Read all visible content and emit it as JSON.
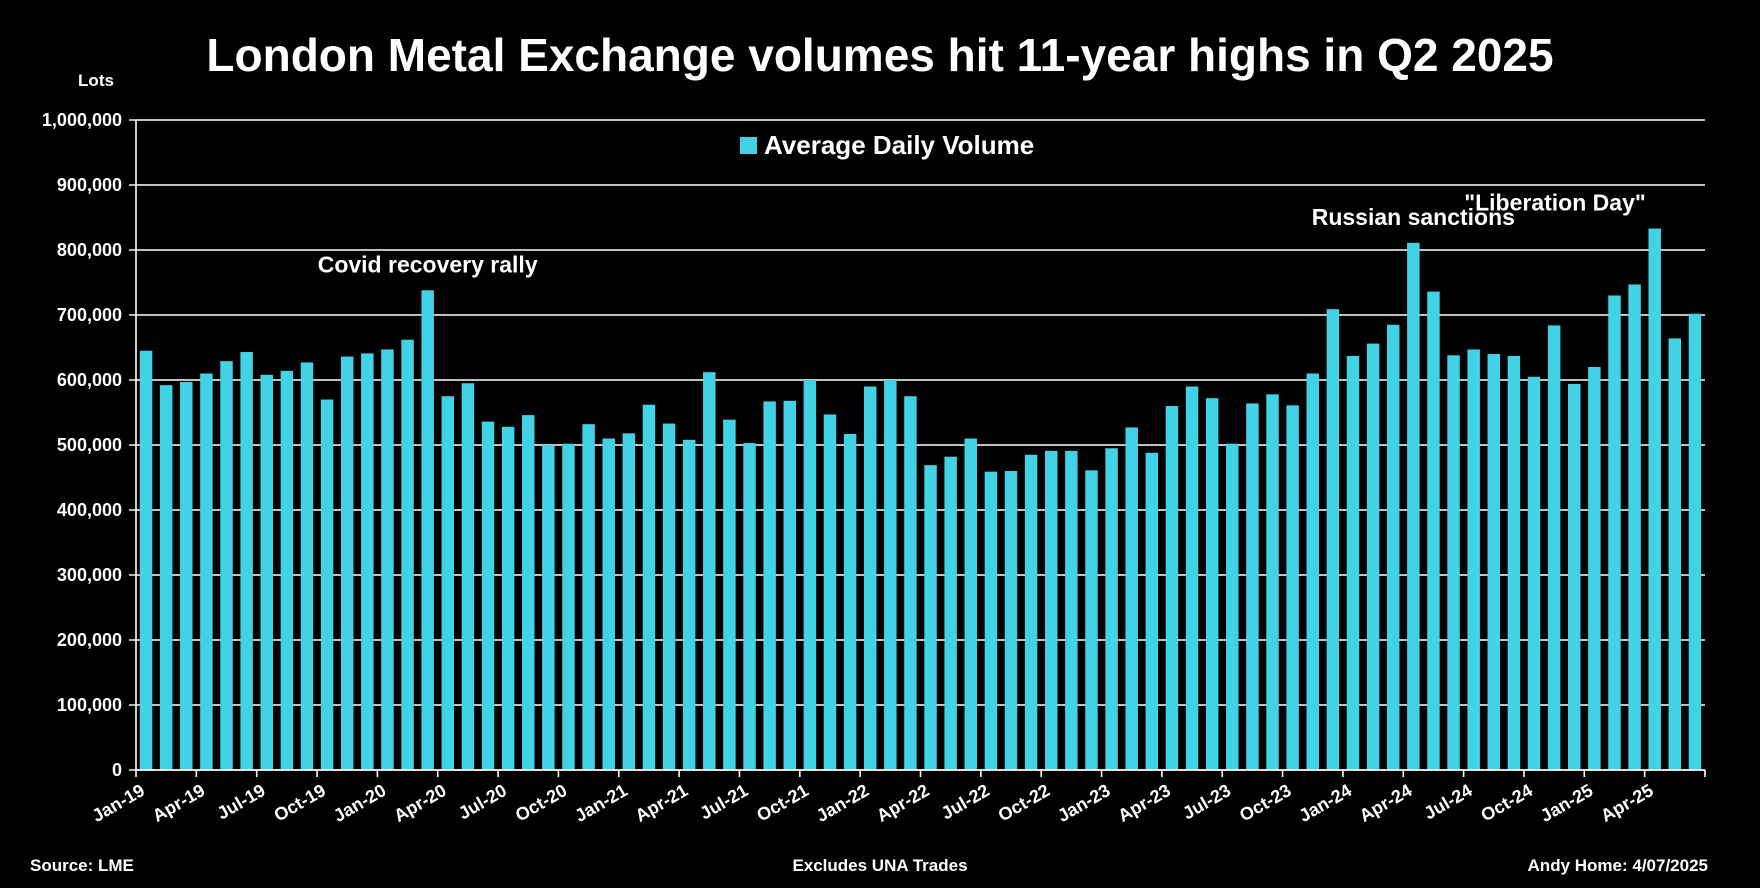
{
  "chart_data": {
    "type": "bar",
    "title": "London Metal Exchange volumes hit 11-year highs in Q2 2025",
    "ylabel": "Lots",
    "xlabel": "",
    "ylim": [
      0,
      1000000
    ],
    "yticks": [
      0,
      100000,
      200000,
      300000,
      400000,
      500000,
      600000,
      700000,
      800000,
      900000,
      1000000
    ],
    "ytick_labels": [
      "0",
      "100,000",
      "200,000",
      "300,000",
      "400,000",
      "500,000",
      "600,000",
      "700,000",
      "800,000",
      "900,000",
      "1,000,000"
    ],
    "grid": true,
    "legend": {
      "placement": "top-center",
      "entries": [
        "Average Daily Volume"
      ]
    },
    "series": [
      {
        "name": "Average Daily Volume",
        "color": "#41D2E6",
        "values": [
          645000,
          592000,
          597000,
          610000,
          629000,
          643000,
          608000,
          614000,
          627000,
          570000,
          636000,
          641000,
          647000,
          662000,
          738000,
          575000,
          595000,
          536000,
          528000,
          546000,
          500000,
          502000,
          532000,
          510000,
          518000,
          562000,
          533000,
          508000,
          612000,
          539000,
          503000,
          567000,
          568000,
          600000,
          547000,
          517000,
          590000,
          600000,
          575000,
          469000,
          482000,
          510000,
          459000,
          460000,
          485000,
          491000,
          491000,
          461000,
          495000,
          527000,
          488000,
          560000,
          590000,
          572000,
          502000,
          564000,
          578000,
          561000,
          610000,
          709000,
          637000,
          656000,
          685000,
          811000,
          736000,
          638000,
          647000,
          640000,
          637000,
          605000,
          684000,
          594000,
          620000,
          730000,
          747000,
          833000,
          664000,
          702000
        ]
      }
    ],
    "x_start": "Jan-19",
    "tick_every": 3,
    "tick_labels": [
      "Jan-19",
      "Apr-19",
      "Jul-19",
      "Oct-19",
      "Jan-20",
      "Apr-20",
      "Jul-20",
      "Oct-20",
      "Jan-21",
      "Apr-21",
      "Jul-21",
      "Oct-21",
      "Jan-22",
      "Apr-22",
      "Jul-22",
      "Oct-22",
      "Jan-23",
      "Apr-23",
      "Jul-23",
      "Oct-23",
      "Jan-24",
      "Apr-24",
      "Jul-24",
      "Oct-24",
      "Jan-25",
      "Apr-25"
    ],
    "annotations": [
      {
        "text": "Covid recovery rally",
        "at_index": 14
      },
      {
        "text": "Russian sanctions",
        "at_index": 63
      },
      {
        "text": "\"Liberation Day\"",
        "at_index": 75
      }
    ]
  },
  "footer": {
    "source": "Source: LME",
    "note": "Excludes UNA Trades",
    "credit": "Andy Home: 4/07/2025"
  }
}
